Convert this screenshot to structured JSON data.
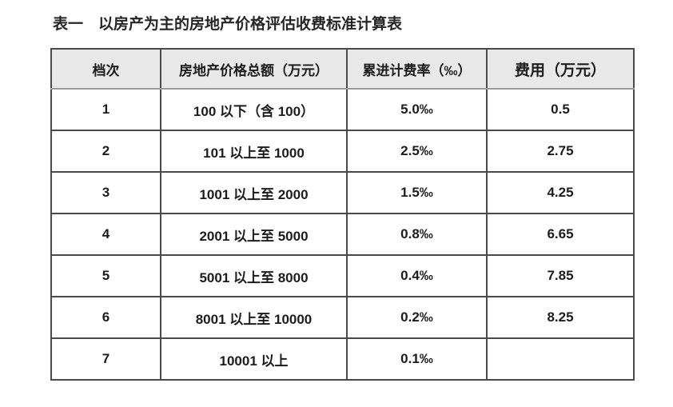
{
  "caption": "表一　以房产为主的房地产价格评估收费标准计算表",
  "table": {
    "headers": [
      "档次",
      "房地产价格总额（万元）",
      "累进计费率（‰）",
      "费用（万元）"
    ],
    "rows": [
      [
        "1",
        "100 以下（含 100）",
        "5.0‰",
        "0.5"
      ],
      [
        "2",
        "101 以上至 1000",
        "2.5‰",
        "2.75"
      ],
      [
        "3",
        "1001 以上至 2000",
        "1.5‰",
        "4.25"
      ],
      [
        "4",
        "2001 以上至 5000",
        "0.8‰",
        "6.65"
      ],
      [
        "5",
        "5001 以上至 8000",
        "0.4‰",
        "7.85"
      ],
      [
        "6",
        "8001 以上至 10000",
        "0.2‰",
        "8.25"
      ],
      [
        "7",
        "10001 以上",
        "0.1‰",
        ""
      ]
    ]
  },
  "colors": {
    "background": "#ffffff",
    "header_bg": "#e8e8e8",
    "border": "#4a4a4a",
    "header_divider": "#9c9c9c",
    "text": "#1c1c1c",
    "caption_text": "#262626"
  }
}
